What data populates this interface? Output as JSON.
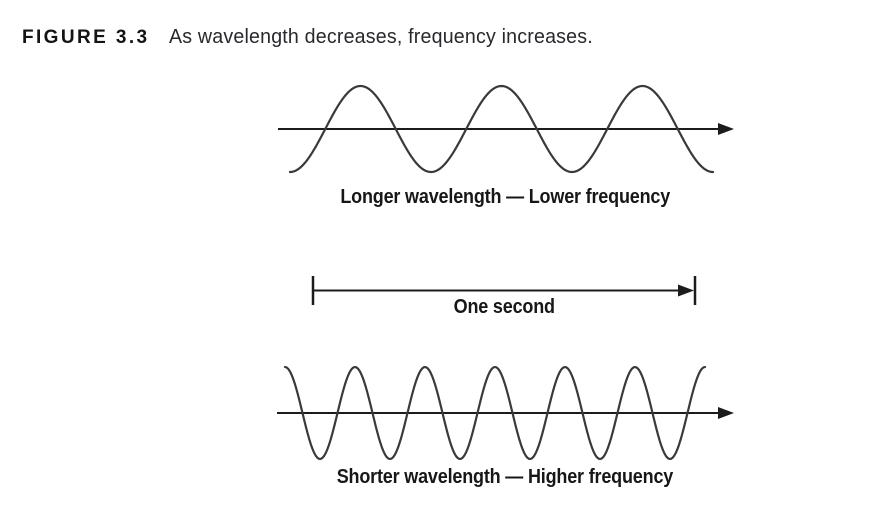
{
  "header": {
    "figure_label": "FIGURE 3.3",
    "caption": "As wavelength decreases, frequency increases."
  },
  "diagram": {
    "top_wave": {
      "cycles": 3,
      "start_phase": "trough",
      "label": "Longer wavelength — Lower frequency"
    },
    "interval": {
      "label": "One second"
    },
    "bottom_wave": {
      "cycles": 6,
      "start_phase": "peak",
      "label": "Shorter wavelength — Higher frequency"
    }
  },
  "colors": {
    "ink": "#1c1c1e",
    "wave": "#3a3a3c",
    "label_ink": "#17171a"
  }
}
